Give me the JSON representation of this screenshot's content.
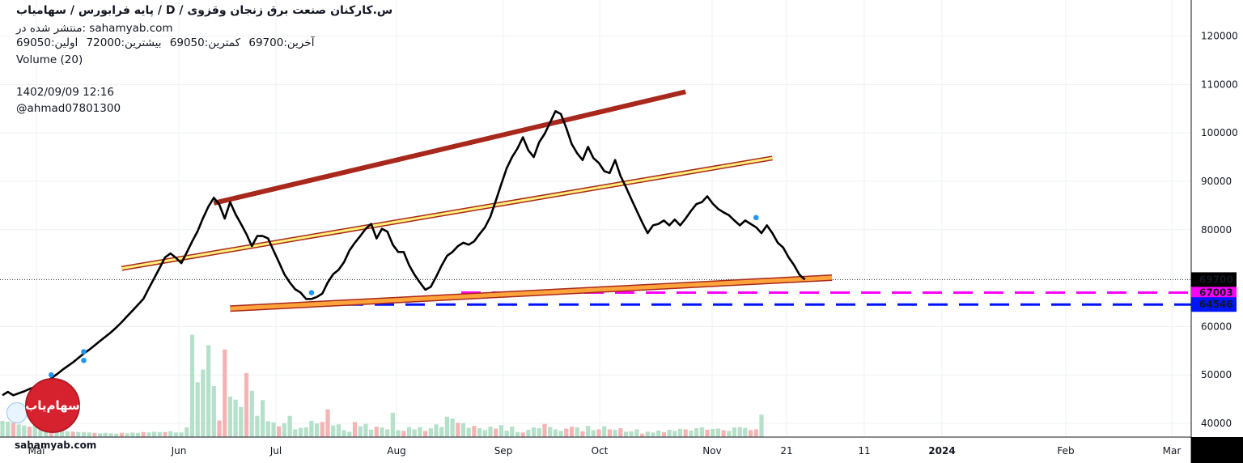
{
  "header": {
    "title": "س.کارکنان صنعت برق زنجان وقزوی /  D  /  پایه فرابورس / سهامیاب",
    "published_on": "منتشر شده در: sahamyab.com",
    "ohlc": {
      "open_label": "اولین:69050",
      "high_label": "بیشترین:72000",
      "low_label": "کمترین:69050",
      "close_label": "آخرین:69700"
    },
    "volume_label": "Volume (20)",
    "timestamp": "1402/09/09 12:16",
    "author": "@ahmad07801300"
  },
  "watermark": {
    "site": "sahamyab.com",
    "logo_text": "سهام‌یاب"
  },
  "colors": {
    "price_line": "#000000",
    "up_volume": "#a8dbc0",
    "down_volume": "#f2a7a7",
    "channel_top": "#a8281c",
    "channel_mid_fill": "#fff07a",
    "channel_low_fill": "#ffa43a",
    "support_magenta": "#ff00ff",
    "support_blue": "#0015ff",
    "marker": "#2196f3"
  },
  "chart_data": {
    "type": "line",
    "title": "",
    "xlabel": "",
    "ylabel": "",
    "x_ticks": [
      "Mai",
      "Jun",
      "Jul",
      "Aug",
      "Sep",
      "Oct",
      "Nov",
      "21",
      "11",
      "2024",
      "Feb",
      "Mar"
    ],
    "y_ticks": [
      40000,
      50000,
      60000,
      70000,
      80000,
      90000,
      100000,
      110000,
      120000
    ],
    "ylim": [
      37500,
      129000
    ],
    "grid": true,
    "series": [
      {
        "values": [
          45800,
          46500,
          45800,
          46200,
          46600,
          47100,
          47500,
          48000,
          48600,
          49300,
          50100,
          51000,
          51800,
          52600,
          53500,
          54400,
          55200,
          56100,
          57000,
          57900,
          58800,
          59800,
          60900,
          62100,
          63300,
          64500,
          65700,
          67900,
          70000,
          72100,
          74300,
          75100,
          74200,
          73100,
          75300,
          77600,
          79700,
          82400,
          84800,
          86600,
          85200,
          82300,
          85700,
          83200,
          81200,
          79100,
          76600,
          78700,
          78700,
          78200,
          75700,
          73300,
          70800,
          69100,
          67700,
          67000,
          65700,
          65700,
          66100,
          66800,
          69100,
          70800,
          71700,
          73300,
          75700,
          77300,
          78700,
          80200,
          81200,
          78200,
          80200,
          79600,
          76900,
          75400,
          75400,
          72700,
          70700,
          69100,
          67600,
          68200,
          70300,
          72600,
          74600,
          75400,
          76600,
          77300,
          76900,
          77600,
          79100,
          80500,
          82700,
          86000,
          89400,
          92700,
          95000,
          96800,
          99100,
          96400,
          95000,
          98100,
          99800,
          102100,
          104500,
          103900,
          101000,
          97700,
          95800,
          94400,
          97100,
          94800,
          93800,
          92100,
          91700,
          94400,
          91100,
          88800,
          86300,
          83900,
          81500,
          79300,
          80900,
          81200,
          81900,
          80900,
          82100,
          80900,
          82300,
          83900,
          85300,
          85700,
          86900,
          85400,
          84300,
          83600,
          83000,
          81900,
          80900,
          81900,
          81200,
          80500,
          79300,
          80900,
          79300,
          77300,
          76300,
          74300,
          72700,
          70700,
          69700
        ]
      }
    ],
    "volume_bars": [
      [
        4200,
        "up"
      ],
      [
        4000,
        "up"
      ],
      [
        3700,
        "down"
      ],
      [
        3300,
        "up"
      ],
      [
        3000,
        "up"
      ],
      [
        2700,
        "down"
      ],
      [
        3200,
        "up"
      ],
      [
        2200,
        "up"
      ],
      [
        2100,
        "up"
      ],
      [
        1900,
        "down"
      ],
      [
        1700,
        "up"
      ],
      [
        1600,
        "up"
      ],
      [
        1500,
        "up"
      ],
      [
        1400,
        "down"
      ],
      [
        1300,
        "up"
      ],
      [
        1300,
        "up"
      ],
      [
        1200,
        "up"
      ],
      [
        1100,
        "down"
      ],
      [
        1000,
        "up"
      ],
      [
        1100,
        "up"
      ],
      [
        1000,
        "up"
      ],
      [
        900,
        "up"
      ],
      [
        1100,
        "down"
      ],
      [
        1000,
        "up"
      ],
      [
        1200,
        "up"
      ],
      [
        1100,
        "up"
      ],
      [
        1300,
        "down"
      ],
      [
        1200,
        "up"
      ],
      [
        1400,
        "up"
      ],
      [
        1300,
        "up"
      ],
      [
        1300,
        "down"
      ],
      [
        1500,
        "up"
      ],
      [
        1200,
        "up"
      ],
      [
        1200,
        "up"
      ],
      [
        2500,
        "up"
      ],
      [
        26500,
        "up"
      ],
      [
        14200,
        "up"
      ],
      [
        17500,
        "up"
      ],
      [
        23800,
        "up"
      ],
      [
        13200,
        "up"
      ],
      [
        4300,
        "down"
      ],
      [
        22700,
        "down"
      ],
      [
        10500,
        "up"
      ],
      [
        9700,
        "up"
      ],
      [
        7800,
        "up"
      ],
      [
        16600,
        "down"
      ],
      [
        12000,
        "up"
      ],
      [
        5500,
        "up"
      ],
      [
        9600,
        "up"
      ],
      [
        4100,
        "up"
      ],
      [
        3800,
        "up"
      ],
      [
        2800,
        "down"
      ],
      [
        3600,
        "up"
      ],
      [
        5500,
        "up"
      ],
      [
        2000,
        "up"
      ],
      [
        2400,
        "up"
      ],
      [
        2500,
        "up"
      ],
      [
        4200,
        "up"
      ],
      [
        3500,
        "up"
      ],
      [
        3900,
        "down"
      ],
      [
        7200,
        "down"
      ],
      [
        3000,
        "up"
      ],
      [
        3300,
        "up"
      ],
      [
        1800,
        "up"
      ],
      [
        1400,
        "up"
      ],
      [
        3900,
        "down"
      ],
      [
        2800,
        "up"
      ],
      [
        3400,
        "up"
      ],
      [
        1900,
        "up"
      ],
      [
        2700,
        "down"
      ],
      [
        2500,
        "up"
      ],
      [
        2000,
        "up"
      ],
      [
        6300,
        "up"
      ],
      [
        1800,
        "up"
      ],
      [
        1600,
        "down"
      ],
      [
        2600,
        "up"
      ],
      [
        2000,
        "up"
      ],
      [
        2600,
        "up"
      ],
      [
        1600,
        "down"
      ],
      [
        2300,
        "up"
      ],
      [
        3300,
        "up"
      ],
      [
        2600,
        "up"
      ],
      [
        5300,
        "up"
      ],
      [
        4800,
        "up"
      ],
      [
        3700,
        "down"
      ],
      [
        3600,
        "up"
      ],
      [
        2400,
        "up"
      ],
      [
        2900,
        "down"
      ],
      [
        2300,
        "up"
      ],
      [
        1800,
        "up"
      ],
      [
        2700,
        "up"
      ],
      [
        2200,
        "down"
      ],
      [
        3100,
        "up"
      ],
      [
        1700,
        "up"
      ],
      [
        2700,
        "up"
      ],
      [
        1300,
        "up"
      ],
      [
        1200,
        "down"
      ],
      [
        1900,
        "up"
      ],
      [
        2500,
        "up"
      ],
      [
        2300,
        "up"
      ],
      [
        3400,
        "down"
      ],
      [
        2600,
        "up"
      ],
      [
        2000,
        "up"
      ],
      [
        1600,
        "up"
      ],
      [
        2200,
        "down"
      ],
      [
        2700,
        "down"
      ],
      [
        2500,
        "up"
      ],
      [
        1500,
        "down"
      ],
      [
        2900,
        "up"
      ],
      [
        1800,
        "up"
      ],
      [
        2000,
        "down"
      ],
      [
        2800,
        "up"
      ],
      [
        2000,
        "down"
      ],
      [
        1900,
        "up"
      ],
      [
        2300,
        "down"
      ],
      [
        1400,
        "up"
      ],
      [
        1500,
        "up"
      ],
      [
        2000,
        "up"
      ],
      [
        900,
        "down"
      ],
      [
        1400,
        "up"
      ],
      [
        1200,
        "up"
      ],
      [
        1700,
        "up"
      ],
      [
        1300,
        "down"
      ],
      [
        1900,
        "up"
      ],
      [
        1600,
        "up"
      ],
      [
        2100,
        "up"
      ],
      [
        2000,
        "down"
      ],
      [
        1700,
        "up"
      ],
      [
        2300,
        "up"
      ],
      [
        2500,
        "up"
      ],
      [
        1900,
        "down"
      ],
      [
        2100,
        "up"
      ],
      [
        2200,
        "up"
      ],
      [
        1800,
        "down"
      ],
      [
        1600,
        "up"
      ],
      [
        2500,
        "up"
      ],
      [
        2600,
        "up"
      ],
      [
        2400,
        "up"
      ],
      [
        1800,
        "down"
      ],
      [
        2000,
        "down"
      ],
      [
        5800,
        "up"
      ]
    ],
    "horizontal_levels": [
      {
        "value": 67003,
        "label": "67003",
        "style": "dashed",
        "color_key": "support_magenta"
      },
      {
        "value": 64546,
        "label": "64546",
        "style": "dashed",
        "color_key": "support_blue"
      },
      {
        "value": 69700,
        "label": "69700",
        "style": "dotted",
        "color_key": "price_line"
      }
    ],
    "trendlines": [
      {
        "name": "channel-top",
        "from": [
          39,
          85500
        ],
        "to": [
          126,
          108500
        ]
      },
      {
        "name": "channel-middle",
        "from": [
          22,
          72000
        ],
        "to": [
          142,
          94800
        ]
      },
      {
        "name": "channel-bottom",
        "from": [
          42,
          63700
        ],
        "to": [
          153,
          70100
        ]
      }
    ],
    "markers": [
      [
        9,
        50000
      ],
      [
        15,
        54800
      ],
      [
        15,
        53000
      ],
      [
        57,
        67000
      ],
      [
        139,
        82500
      ]
    ]
  }
}
